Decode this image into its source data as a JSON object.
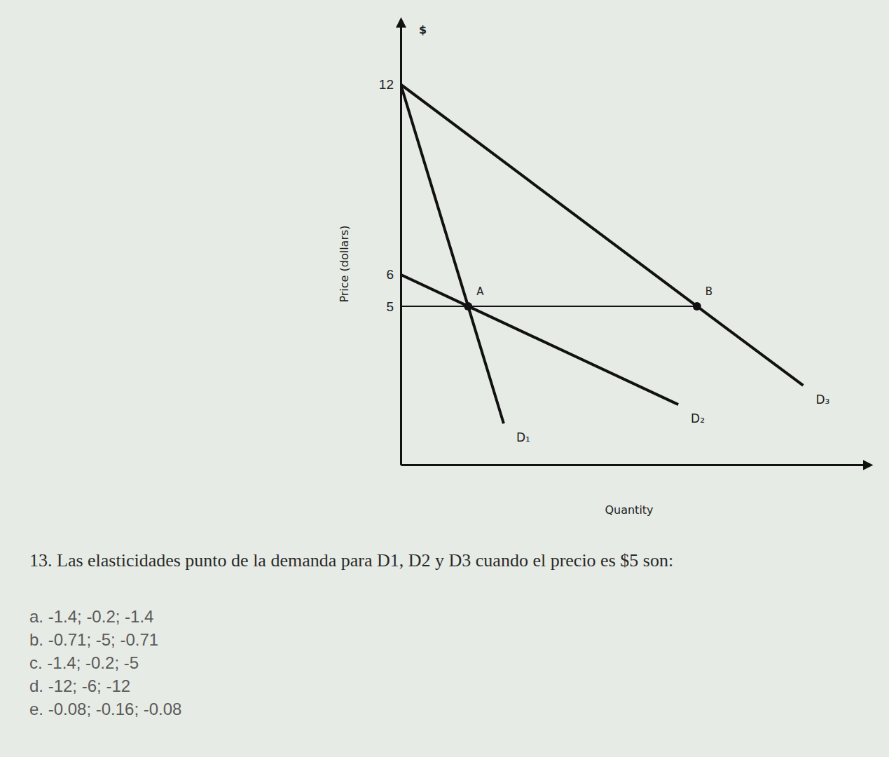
{
  "chart_data": {
    "type": "line",
    "y_symbol": "$",
    "y_label": "Price (dollars)",
    "x_label": "Quantity",
    "xlim": [
      0,
      100
    ],
    "ylim": [
      0,
      14
    ],
    "yticks": [
      5,
      6,
      12
    ],
    "tick_labels": "y",
    "color": "#111111",
    "series": [
      {
        "name": "D₁",
        "x": [
          0,
          14.4,
          22
        ],
        "values": [
          12,
          5,
          1.3
        ]
      },
      {
        "name": "D₂",
        "x": [
          0,
          14.4,
          59.3
        ],
        "values": [
          6,
          5,
          1.9
        ]
      },
      {
        "name": "D₃",
        "x": [
          0,
          63.3,
          86
        ],
        "values": [
          12,
          5,
          2.5
        ]
      }
    ],
    "price_line": {
      "x": [
        0,
        63.3
      ],
      "values": [
        5,
        5
      ]
    },
    "points": {
      "labels": [
        "A",
        "B"
      ],
      "x": [
        14.4,
        63.3
      ],
      "values": [
        5,
        5
      ]
    }
  },
  "question": {
    "text": "13. Las elasticidades punto de la demanda para D1, D2 y D3 cuando el precio es $5 son:",
    "options": [
      "a. -1.4; -0.2; -1.4",
      "b. -0.71; -5; -0.71",
      "c. -1.4; -0.2; -5",
      "d. -12; -6; -12",
      "e. -0.08; -0.16; -0.08"
    ]
  }
}
